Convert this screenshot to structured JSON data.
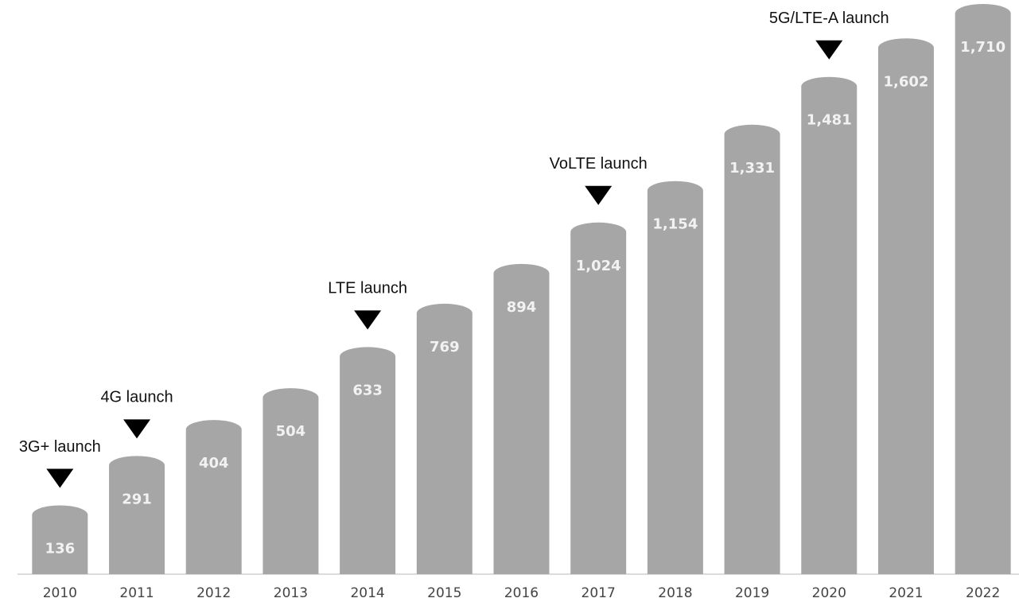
{
  "chart_data": {
    "type": "bar",
    "categories": [
      "2010",
      "2011",
      "2012",
      "2013",
      "2014",
      "2015",
      "2016",
      "2017",
      "2018",
      "2019",
      "2020",
      "2021",
      "2022"
    ],
    "values": [
      136,
      291,
      404,
      504,
      633,
      769,
      894,
      1024,
      1154,
      1331,
      1481,
      1602,
      1710
    ],
    "value_labels": [
      "136",
      "291",
      "404",
      "504",
      "633",
      "769",
      "894",
      "1,024",
      "1,154",
      "1,331",
      "1,481",
      "1,602",
      "1,710"
    ],
    "color": "#a6a6a6",
    "ylim": [
      -80,
      1710
    ],
    "annotations": [
      {
        "text": "3G+ launch",
        "category": "2010"
      },
      {
        "text": "4G launch",
        "category": "2011"
      },
      {
        "text": "LTE launch",
        "category": "2014"
      },
      {
        "text": "VoLTE launch",
        "category": "2017"
      },
      {
        "text": "5G/LTE-A launch",
        "category": "2020"
      }
    ]
  }
}
